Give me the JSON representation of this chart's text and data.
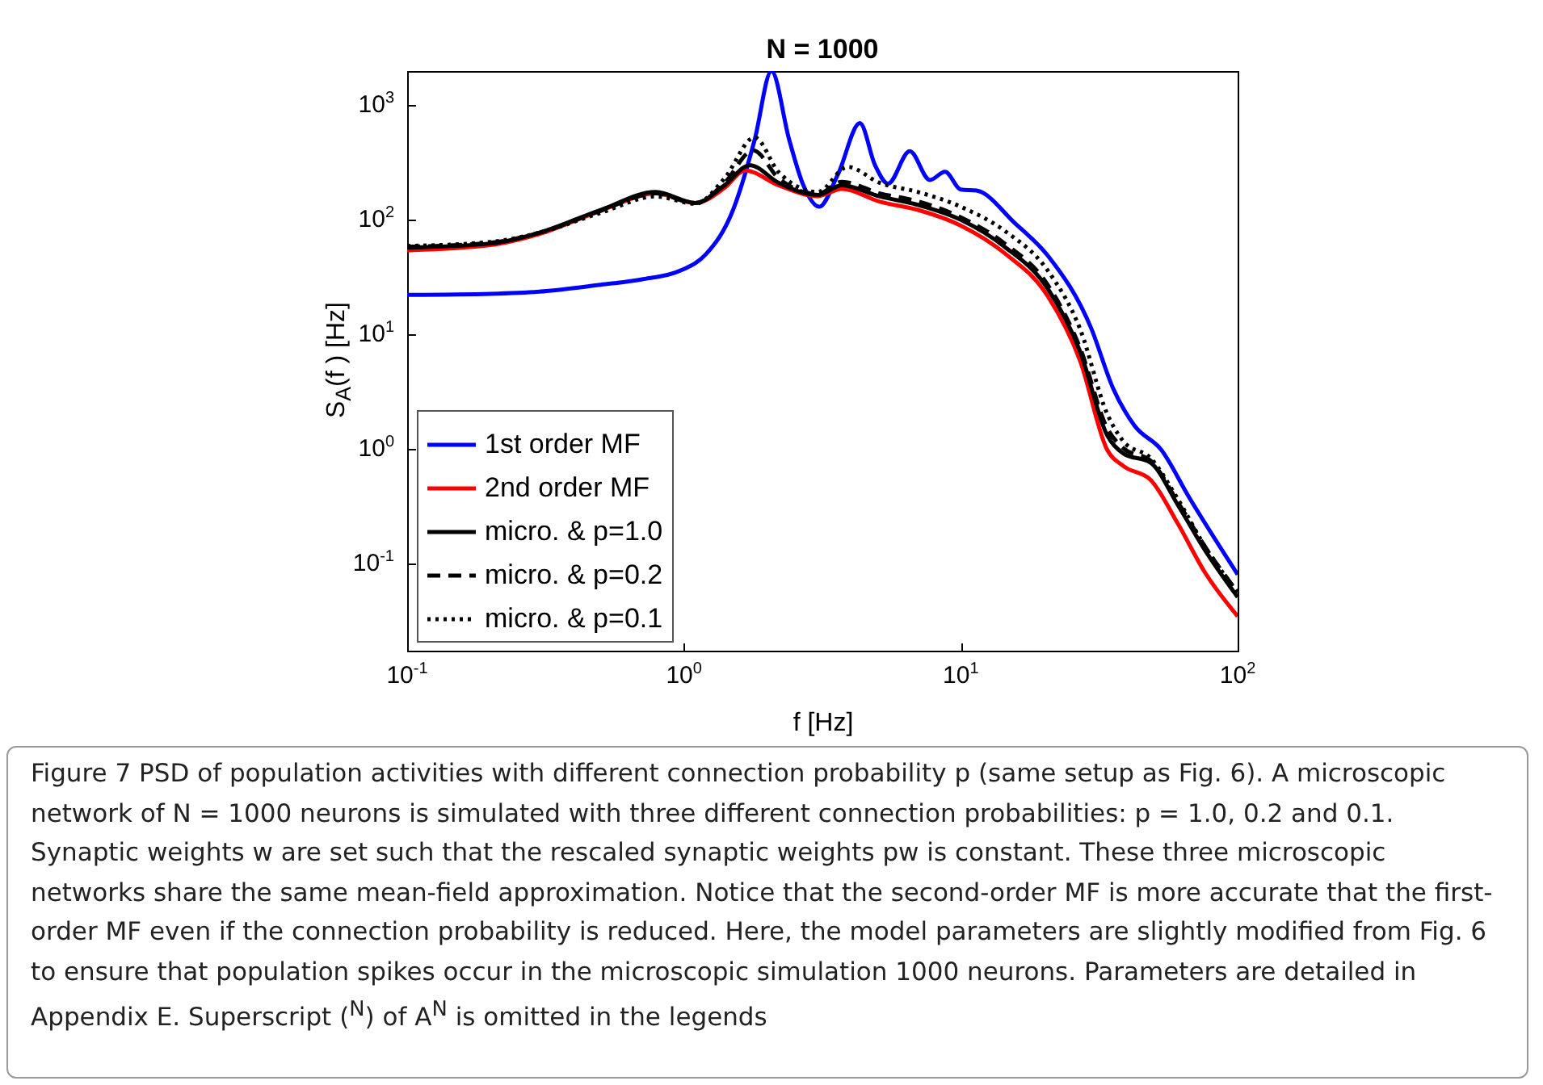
{
  "chart_data": {
    "type": "line",
    "title": "N = 1000",
    "xlabel": "f  [Hz]",
    "ylabel": "S$_{A}$(f )  [Hz]",
    "log": "xy",
    "legend": "bottom left",
    "xlim": [
      0.1,
      100
    ],
    "ylim": [
      0.017,
      2000
    ],
    "xticks": [
      {
        "value": 0.1,
        "label": "10$^{-1}$"
      },
      {
        "value": 1,
        "label": "10$^{0}$"
      },
      {
        "value": 10,
        "label": "10$^{1}$"
      },
      {
        "value": 100,
        "label": "10$^{2}$"
      }
    ],
    "yticks": [
      {
        "value": 0.1,
        "label": "10$^{-1}$"
      },
      {
        "value": 1,
        "label": "10$^{0}$"
      },
      {
        "value": 10,
        "label": "10$^{1}$"
      },
      {
        "value": 100,
        "label": "10$^{2}$"
      },
      {
        "value": 1000,
        "label": "10$^{3}$"
      }
    ],
    "series": [
      {
        "name": "1st order MF",
        "color": "#0000ff",
        "line_style": "solid",
        "x": [
          0.1,
          0.2,
          0.3,
          0.5,
          0.7,
          1.0,
          1.2,
          1.5,
          1.8,
          2.07,
          2.4,
          2.7,
          3.08,
          3.6,
          4.32,
          4.9,
          5.46,
          6.54,
          7.73,
          8.77,
          10,
          11.4,
          15.7,
          20.6,
          29.6,
          35.4,
          42.4,
          53,
          66.5,
          100
        ],
        "values": [
          22,
          22.5,
          23.5,
          27,
          30,
          37,
          50,
          120,
          500,
          2000,
          500,
          200,
          130,
          250,
          700,
          300,
          207,
          398,
          223,
          263,
          184,
          180,
          93,
          48.7,
          11.2,
          3.4,
          1.58,
          0.97,
          0.38,
          0.079
        ]
      },
      {
        "name": "2nd order MF",
        "color": "#ff0000",
        "line_style": "solid",
        "x": [
          0.1,
          0.2,
          0.3,
          0.5,
          0.79,
          1.1,
          1.4,
          1.66,
          2.2,
          3.04,
          3.72,
          5.1,
          7,
          10,
          14.4,
          20.6,
          27,
          33.8,
          38.7,
          48.5,
          60.8,
          76,
          100
        ],
        "values": [
          54,
          60,
          75,
          120,
          170,
          140,
          190,
          270,
          200,
          161,
          186,
          144,
          122,
          89,
          51,
          21.5,
          5.8,
          0.97,
          0.7,
          0.53,
          0.22,
          0.083,
          0.034
        ]
      },
      {
        "name": "micro. & p=1.0",
        "color": "#000000",
        "line_style": "solid",
        "x": [
          0.1,
          0.2,
          0.3,
          0.5,
          0.79,
          1.1,
          1.4,
          1.73,
          2.2,
          3.04,
          3.72,
          5.1,
          7,
          10,
          14.4,
          20.6,
          27,
          33.8,
          38.7,
          48.5,
          60.8,
          76,
          100
        ],
        "values": [
          57,
          62,
          77,
          122,
          175,
          140,
          200,
          300,
          210,
          165,
          200,
          160,
          135,
          100,
          58,
          25,
          7,
          1.3,
          0.9,
          0.75,
          0.32,
          0.13,
          0.05
        ]
      },
      {
        "name": "micro. & p=0.2",
        "color": "#000000",
        "line_style": "dashed",
        "x": [
          0.1,
          0.2,
          0.3,
          0.5,
          0.79,
          1.1,
          1.4,
          1.78,
          2.2,
          3.04,
          3.72,
          5.1,
          7,
          10,
          14.4,
          20.6,
          27,
          33.8,
          38.7,
          48.5,
          60.8,
          76,
          100
        ],
        "values": [
          58,
          63,
          77,
          120,
          170,
          140,
          210,
          405,
          230,
          168,
          215,
          170,
          145,
          105,
          62,
          27,
          7.5,
          1.5,
          1.0,
          0.78,
          0.34,
          0.14,
          0.055
        ]
      },
      {
        "name": "micro. & p=0.1",
        "color": "#000000",
        "line_style": "dotted",
        "x": [
          0.1,
          0.2,
          0.3,
          0.5,
          0.79,
          1.1,
          1.4,
          1.8,
          2.2,
          3.04,
          3.9,
          5.1,
          7,
          10,
          14.4,
          20.6,
          27,
          33.8,
          38.7,
          48.5,
          60.8,
          76,
          100
        ],
        "values": [
          59,
          64,
          77,
          115,
          160,
          138,
          230,
          525,
          260,
          175,
          290,
          210,
          175,
          130,
          80,
          36,
          11,
          2.0,
          1.15,
          0.82,
          0.36,
          0.14,
          0.055
        ]
      }
    ],
    "annotations": [
      "Figure 7  PSD of population activities with different connection probability p (same setup as Fig. 6). A microscopic network of N = 1000 neurons is simulated with three different connection probabilities: p = 1.0, 0.2 and 0.1. Synaptic weights w are set such that the rescaled synaptic weights pw is constant. These three microscopic networks share the same mean-field approximation. Notice that the second-order MF is more accurate that the first-order MF even if the connection probability is reduced. Here, the model parameters are slightly modified from Fig. 6 to ensure that population spikes occur in the microscopic simulation 1000 neurons. Parameters are detailed in Appendix E. Superscript ($^{N}$) of A$^{N}$ is omitted in the legends"
    ]
  }
}
